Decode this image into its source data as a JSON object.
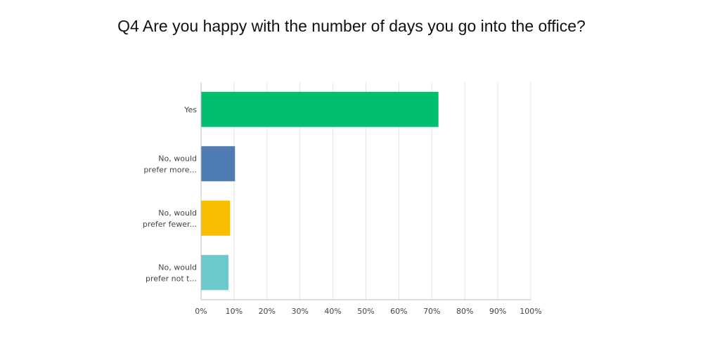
{
  "chart_data": {
    "type": "bar",
    "orientation": "horizontal",
    "title": "Q4 Are you happy with the number of days you go into the office?",
    "categories": [
      [
        "Yes"
      ],
      [
        "No, would",
        "prefer more..."
      ],
      [
        "No, would",
        "prefer fewer..."
      ],
      [
        "No, would",
        "prefer not t..."
      ]
    ],
    "values": [
      72,
      10.3,
      8.8,
      8.3
    ],
    "colors": [
      "#00bf6f",
      "#507cb6",
      "#f9be00",
      "#6bc8cd"
    ],
    "xlim": [
      0,
      100
    ],
    "xticks": [
      "0%",
      "10%",
      "20%",
      "30%",
      "40%",
      "50%",
      "60%",
      "70%",
      "80%",
      "90%",
      "100%"
    ],
    "grid": true
  }
}
